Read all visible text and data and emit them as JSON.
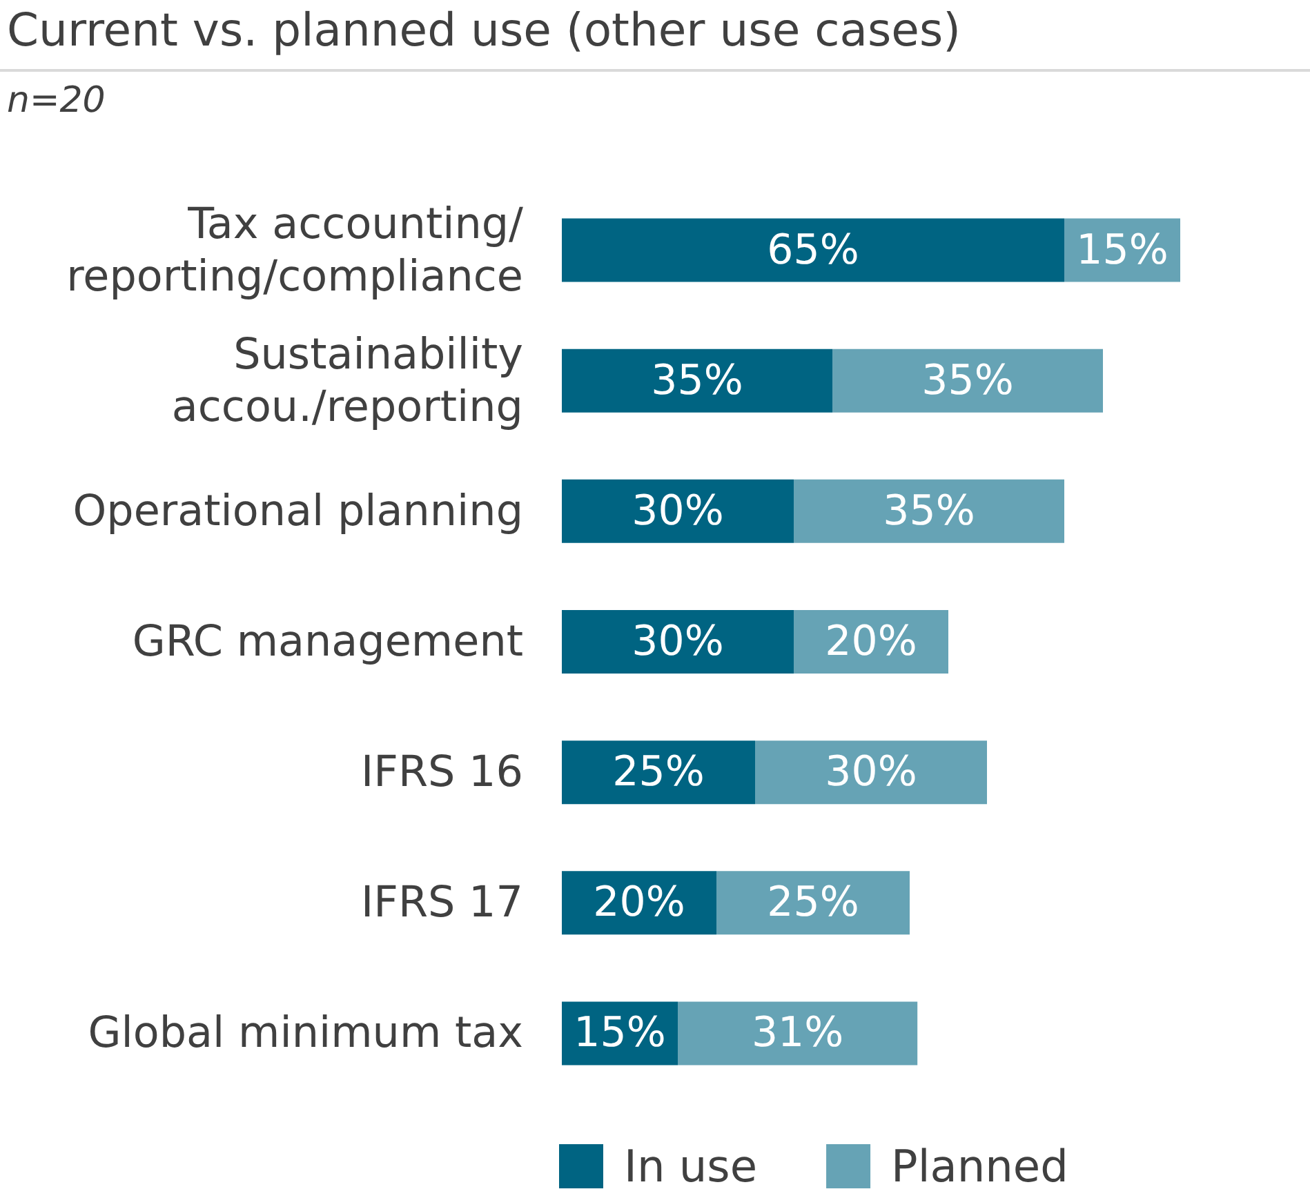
{
  "chart_data": {
    "type": "bar",
    "orientation": "horizontal",
    "stacked": true,
    "legend": "bottom",
    "title": "Current vs. planned use (other use cases)",
    "subtitle": "n=20",
    "categories": [
      "Tax accounting/\nreporting/compliance",
      "Sustainability\naccou./reporting",
      "Operational planning",
      "GRC management",
      "IFRS 16",
      "IFRS 17",
      "Global minimum tax"
    ],
    "series": [
      {
        "name": "In use",
        "color": "#006482",
        "values": [
          65,
          35,
          30,
          30,
          25,
          20,
          15
        ],
        "value_labels": [
          "65%",
          "35%",
          "30%",
          "30%",
          "25%",
          "20%",
          "15%"
        ]
      },
      {
        "name": "Planned",
        "color": "#66a3b5",
        "values": [
          15,
          35,
          35,
          20,
          30,
          25,
          31
        ],
        "value_labels": [
          "15%",
          "35%",
          "35%",
          "20%",
          "30%",
          "25%",
          "31%"
        ]
      }
    ]
  }
}
